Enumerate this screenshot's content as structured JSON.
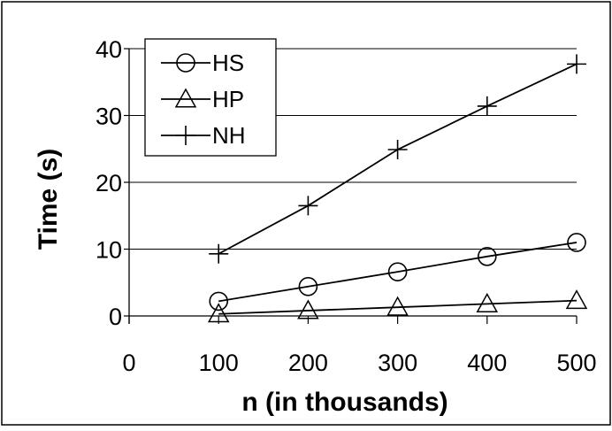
{
  "chart_data": {
    "type": "line",
    "title": "",
    "xlabel": "n (in thousands)",
    "ylabel": "Time (s)",
    "x": [
      100,
      200,
      300,
      400,
      500
    ],
    "xlim": [
      0,
      500
    ],
    "ylim": [
      0,
      40
    ],
    "xticks": [
      0,
      100,
      200,
      300,
      400,
      500
    ],
    "yticks": [
      0,
      10,
      20,
      30,
      40
    ],
    "grid": "horizontal",
    "legend_position": "top-left",
    "series": [
      {
        "name": "HS",
        "marker": "circle",
        "values": [
          2.2,
          4.4,
          6.6,
          8.9,
          11.0
        ]
      },
      {
        "name": "HP",
        "marker": "triangle",
        "values": [
          0.3,
          0.8,
          1.3,
          1.8,
          2.3
        ]
      },
      {
        "name": "NH",
        "marker": "plus",
        "values": [
          9.3,
          16.5,
          24.9,
          31.4,
          37.7
        ]
      }
    ]
  }
}
